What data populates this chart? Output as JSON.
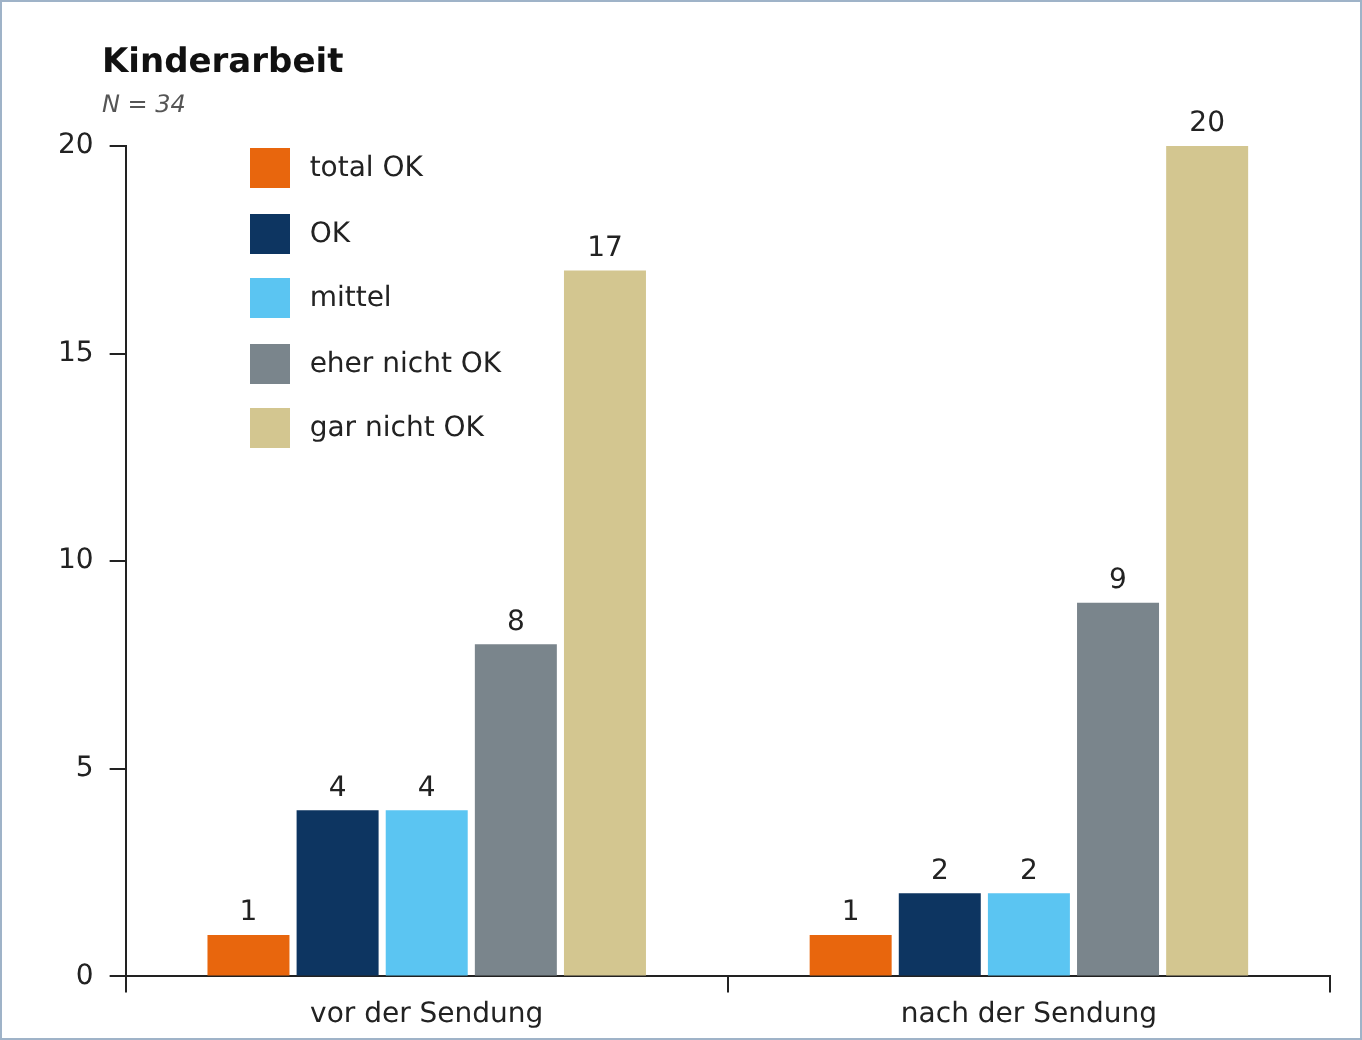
{
  "chart_data": {
    "type": "bar",
    "title": "Kinderarbeit",
    "subtitle": "N = 34",
    "categories": [
      "vor der Sendung",
      "nach der Sendung"
    ],
    "series": [
      {
        "name": "total OK",
        "color": "#e8660d",
        "values": [
          1,
          1
        ]
      },
      {
        "name": "OK",
        "color": "#0d3561",
        "values": [
          4,
          2
        ]
      },
      {
        "name": "mittel",
        "color": "#5bc5f2",
        "values": [
          4,
          2
        ]
      },
      {
        "name": "eher nicht OK",
        "color": "#7a858c",
        "values": [
          8,
          9
        ]
      },
      {
        "name": "gar nicht OK",
        "color": "#d3c690",
        "values": [
          17,
          20
        ]
      }
    ],
    "ylim": [
      0,
      20
    ],
    "yticks": [
      0,
      5,
      10,
      15,
      20
    ],
    "grid": false,
    "legend": "top left",
    "data_labels": true
  }
}
